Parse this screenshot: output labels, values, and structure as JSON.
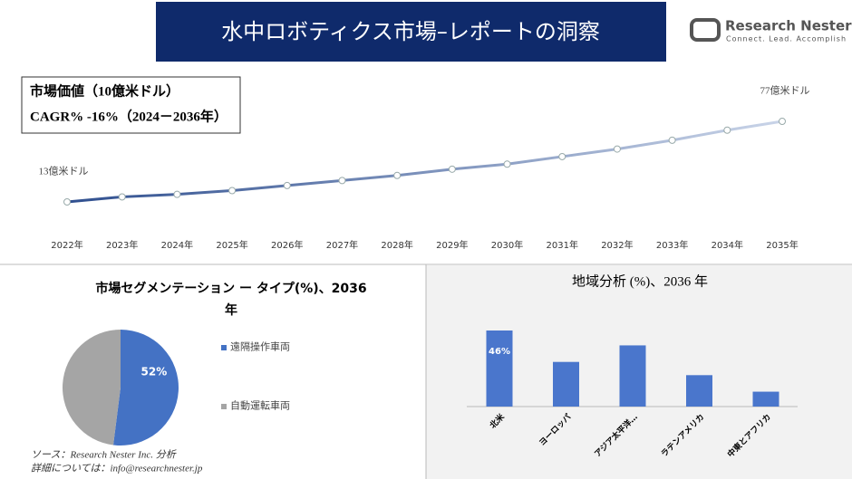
{
  "header": {
    "title": "水中ロボティクス市場–レポートの洞察",
    "logo_name": "Research Nester",
    "logo_tagline": "Connect. Lead. Accomplish"
  },
  "info_box": {
    "line1": "市場価値（10億米ドル）",
    "line2": "CAGR% -16%（2024－2036年）"
  },
  "chart_data": [
    {
      "type": "line",
      "color_start": "#2f4f8f",
      "color_end": "#c9d4e8",
      "categories": [
        "2022年",
        "2023年",
        "2024年",
        "2025年",
        "2026年",
        "2027年",
        "2028年",
        "2029年",
        "2030年",
        "2031年",
        "2032年",
        "2033年",
        "2034年",
        "2035年"
      ],
      "values": [
        13,
        17,
        19,
        22,
        26,
        30,
        34,
        39,
        43,
        49,
        55,
        62,
        70,
        77
      ],
      "value_labels": [
        "13億米ドル",
        null,
        null,
        null,
        null,
        null,
        null,
        null,
        null,
        null,
        null,
        null,
        null,
        "77億米ドル"
      ]
    },
    {
      "type": "pie",
      "title": "市場セグメンテーション ー タイプ(%)、2036年",
      "categories": [
        "遠隔操作車両",
        "自動運転車両"
      ],
      "values": [
        52,
        48
      ],
      "value_labels": [
        "52%",
        null
      ],
      "colors": [
        "#4472c4",
        "#a5a5a5"
      ]
    },
    {
      "type": "bar",
      "title": "地域分析 (%)、2036 年",
      "color": "#4a76cc",
      "categories": [
        "北米",
        "ヨーロッパ",
        "アジア太平洋…",
        "ラテンアメリカ",
        "中東とアフリカ"
      ],
      "values": [
        46,
        27,
        37,
        19,
        9
      ],
      "value_labels": [
        "46%",
        null,
        null,
        null,
        null
      ]
    }
  ],
  "footer": {
    "source": "ソース：Research Nester Inc. 分析",
    "contact": "詳細については：info@researchnester.jp"
  }
}
